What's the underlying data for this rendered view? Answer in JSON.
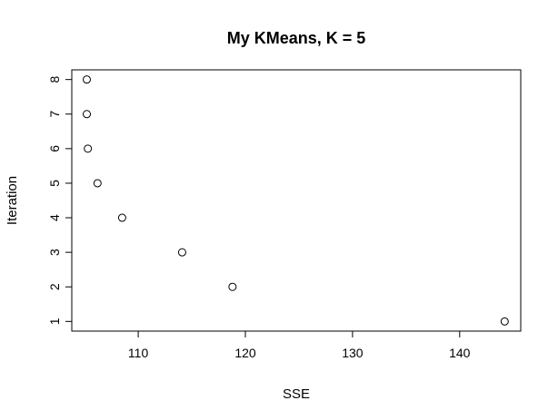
{
  "chart_data": {
    "type": "scatter",
    "title": "My KMeans, K = 5",
    "xlabel": "SSE",
    "ylabel": "Iteration",
    "xlim": [
      103.8,
      145.7
    ],
    "ylim": [
      0.72,
      8.28
    ],
    "x_ticks": [
      110,
      120,
      130,
      140
    ],
    "y_ticks": [
      1,
      2,
      3,
      4,
      5,
      6,
      7,
      8
    ],
    "grid": false,
    "points": [
      {
        "x": 144.2,
        "y": 1
      },
      {
        "x": 118.8,
        "y": 2
      },
      {
        "x": 114.1,
        "y": 3
      },
      {
        "x": 108.5,
        "y": 4
      },
      {
        "x": 106.2,
        "y": 5
      },
      {
        "x": 105.3,
        "y": 6
      },
      {
        "x": 105.2,
        "y": 7
      },
      {
        "x": 105.2,
        "y": 8
      }
    ]
  }
}
